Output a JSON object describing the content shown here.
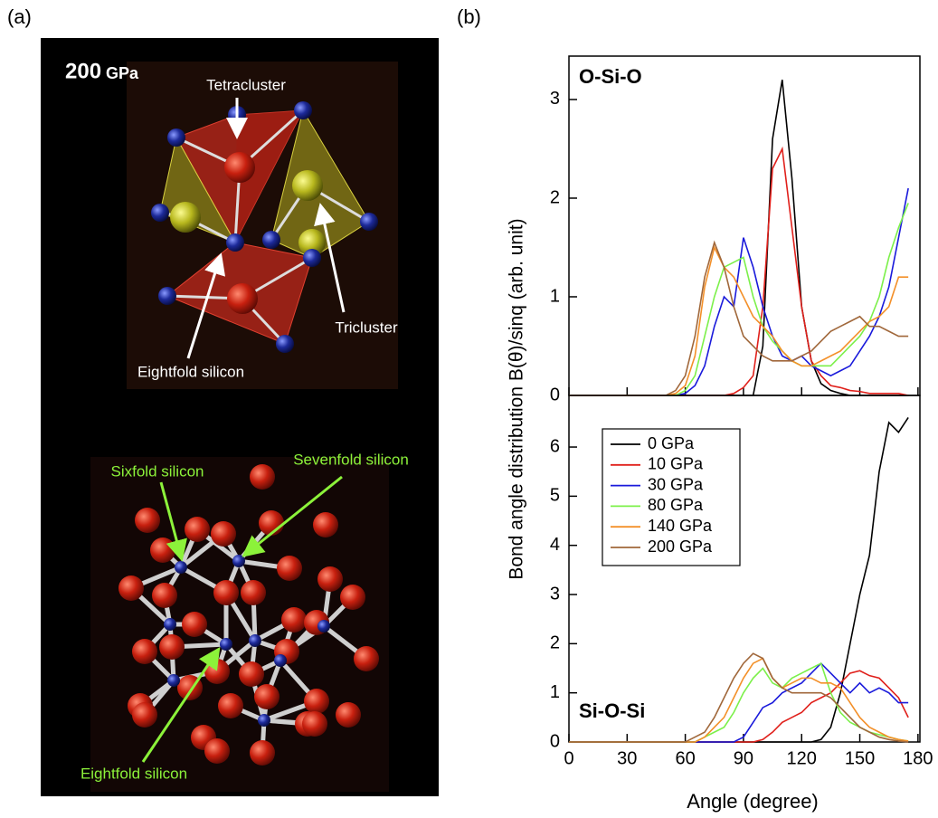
{
  "panel_labels": {
    "a": "(a)",
    "b": "(b)"
  },
  "panel_a": {
    "pressure_value": "200",
    "pressure_unit": "GPa",
    "upper_annotations": {
      "tetracluster": "Tetracluster",
      "tricluster": "Tricluster",
      "eightfold": "Eightfold silicon"
    },
    "lower_annotations": {
      "sixfold": "Sixfold silicon",
      "sevenfold": "Sevenfold silicon",
      "eightfold": "Eightfold silicon"
    }
  },
  "chart_data": [
    {
      "type": "line",
      "title": "O-Si-O",
      "ylabel": "Bond angle distribution B(θ)/sinq (arb. unit)",
      "x": [
        0,
        5,
        10,
        15,
        20,
        25,
        30,
        35,
        40,
        45,
        50,
        55,
        60,
        65,
        70,
        75,
        80,
        85,
        90,
        95,
        100,
        105,
        110,
        115,
        120,
        125,
        130,
        135,
        140,
        145,
        150,
        155,
        160,
        165,
        170,
        175
      ],
      "xlim": [
        0,
        181
      ],
      "ylim": [
        0,
        3.44
      ],
      "yticks": [
        0,
        1,
        2,
        3
      ],
      "series": [
        {
          "color": "#000000",
          "values": [
            0,
            0,
            0,
            0,
            0,
            0,
            0,
            0,
            0,
            0,
            0,
            0,
            0,
            0,
            0,
            0,
            0,
            0,
            0,
            0,
            0.5,
            2.6,
            3.2,
            2.2,
            0.9,
            0.35,
            0.12,
            0.05,
            0.02,
            0,
            0,
            0,
            0,
            0,
            0,
            0
          ]
        },
        {
          "color": "#e0201b",
          "values": [
            0,
            0,
            0,
            0,
            0,
            0,
            0,
            0,
            0,
            0,
            0,
            0,
            0,
            0,
            0,
            0,
            0,
            0.02,
            0.08,
            0.2,
            0.9,
            2.3,
            2.5,
            1.7,
            0.9,
            0.35,
            0.2,
            0.1,
            0.08,
            0.05,
            0.04,
            0.02,
            0.02,
            0.02,
            0.02,
            0
          ]
        },
        {
          "color": "#1a1adb",
          "values": [
            0,
            0,
            0,
            0,
            0,
            0,
            0,
            0,
            0,
            0,
            0,
            0,
            0.02,
            0.1,
            0.3,
            0.7,
            1.0,
            0.9,
            1.6,
            1.3,
            0.9,
            0.6,
            0.4,
            0.35,
            0.4,
            0.3,
            0.25,
            0.2,
            0.25,
            0.3,
            0.45,
            0.6,
            0.8,
            1.1,
            1.6,
            2.1
          ]
        },
        {
          "color": "#7cf04a",
          "values": [
            0,
            0,
            0,
            0,
            0,
            0,
            0,
            0,
            0,
            0,
            0,
            0,
            0.05,
            0.2,
            0.6,
            1.0,
            1.3,
            1.35,
            1.4,
            1.0,
            0.7,
            0.55,
            0.45,
            0.35,
            0.3,
            0.3,
            0.3,
            0.3,
            0.4,
            0.5,
            0.6,
            0.75,
            1.0,
            1.4,
            1.7,
            1.95
          ]
        },
        {
          "color": "#f39029",
          "values": [
            0,
            0,
            0,
            0,
            0,
            0,
            0,
            0,
            0,
            0,
            0,
            0.02,
            0.1,
            0.4,
            1.1,
            1.5,
            1.3,
            1.2,
            1.0,
            0.8,
            0.7,
            0.6,
            0.45,
            0.35,
            0.3,
            0.3,
            0.35,
            0.4,
            0.45,
            0.55,
            0.65,
            0.75,
            0.8,
            0.9,
            1.2,
            1.2
          ]
        },
        {
          "color": "#a0673a",
          "values": [
            0,
            0,
            0,
            0,
            0,
            0,
            0,
            0,
            0,
            0,
            0,
            0.05,
            0.2,
            0.6,
            1.2,
            1.55,
            1.3,
            0.9,
            0.6,
            0.5,
            0.4,
            0.35,
            0.35,
            0.35,
            0.4,
            0.45,
            0.55,
            0.65,
            0.7,
            0.75,
            0.8,
            0.7,
            0.7,
            0.65,
            0.6,
            0.6
          ]
        }
      ]
    },
    {
      "type": "line",
      "title": "Si-O-Si",
      "xlabel": "Angle (degree)",
      "x": [
        0,
        5,
        10,
        15,
        20,
        25,
        30,
        35,
        40,
        45,
        50,
        55,
        60,
        65,
        70,
        75,
        80,
        85,
        90,
        95,
        100,
        105,
        110,
        115,
        120,
        125,
        130,
        135,
        140,
        145,
        150,
        155,
        160,
        165,
        170,
        175
      ],
      "xlim": [
        0,
        181
      ],
      "xticks": [
        0,
        30,
        60,
        90,
        120,
        150,
        180
      ],
      "ylim": [
        0,
        7.05
      ],
      "yticks": [
        0,
        1,
        2,
        3,
        4,
        5,
        6
      ],
      "series": [
        {
          "name": "0 GPa",
          "color": "#000000",
          "values": [
            0,
            0,
            0,
            0,
            0,
            0,
            0,
            0,
            0,
            0,
            0,
            0,
            0,
            0,
            0,
            0,
            0,
            0,
            0,
            0,
            0,
            0,
            0,
            0,
            0,
            0,
            0.05,
            0.3,
            1.0,
            2.0,
            3.0,
            3.8,
            5.5,
            6.5,
            6.3,
            6.6
          ]
        },
        {
          "name": "10 GPa",
          "color": "#e0201b",
          "values": [
            0,
            0,
            0,
            0,
            0,
            0,
            0,
            0,
            0,
            0,
            0,
            0,
            0,
            0,
            0,
            0,
            0,
            0,
            0,
            0,
            0.05,
            0.2,
            0.4,
            0.5,
            0.6,
            0.8,
            0.9,
            1.0,
            1.2,
            1.4,
            1.45,
            1.35,
            1.3,
            1.1,
            0.9,
            0.5
          ]
        },
        {
          "name": "30 GPa",
          "color": "#1a1adb",
          "values": [
            0,
            0,
            0,
            0,
            0,
            0,
            0,
            0,
            0,
            0,
            0,
            0,
            0,
            0,
            0,
            0,
            0,
            0,
            0.1,
            0.4,
            0.7,
            0.8,
            1.0,
            1.1,
            1.2,
            1.4,
            1.6,
            1.4,
            1.2,
            1.0,
            1.2,
            1.0,
            1.1,
            1.0,
            0.8,
            0.8
          ]
        },
        {
          "name": "80 GPa",
          "color": "#7cf04a",
          "values": [
            0,
            0,
            0,
            0,
            0,
            0,
            0,
            0,
            0,
            0,
            0,
            0,
            0,
            0,
            0.1,
            0.2,
            0.3,
            0.6,
            1.0,
            1.3,
            1.5,
            1.2,
            1.1,
            1.3,
            1.4,
            1.5,
            1.6,
            1.0,
            0.6,
            0.4,
            0.3,
            0.2,
            0.15,
            0.1,
            0.05,
            0.02
          ]
        },
        {
          "name": "140 GPa",
          "color": "#f39029",
          "values": [
            0,
            0,
            0,
            0,
            0,
            0,
            0,
            0,
            0,
            0,
            0,
            0,
            0,
            0,
            0.1,
            0.3,
            0.5,
            0.9,
            1.3,
            1.6,
            1.7,
            1.3,
            1.1,
            1.2,
            1.3,
            1.3,
            1.2,
            1.2,
            1.1,
            0.8,
            0.5,
            0.3,
            0.2,
            0.1,
            0.05,
            0.02
          ]
        },
        {
          "name": "200 GPa",
          "color": "#a0673a",
          "values": [
            0,
            0,
            0,
            0,
            0,
            0,
            0,
            0,
            0,
            0,
            0,
            0,
            0,
            0.1,
            0.2,
            0.5,
            0.9,
            1.3,
            1.6,
            1.8,
            1.7,
            1.3,
            1.1,
            1.0,
            1.0,
            1.0,
            1.0,
            0.9,
            0.7,
            0.5,
            0.3,
            0.2,
            0.1,
            0.05,
            0.02,
            0
          ]
        }
      ]
    }
  ]
}
